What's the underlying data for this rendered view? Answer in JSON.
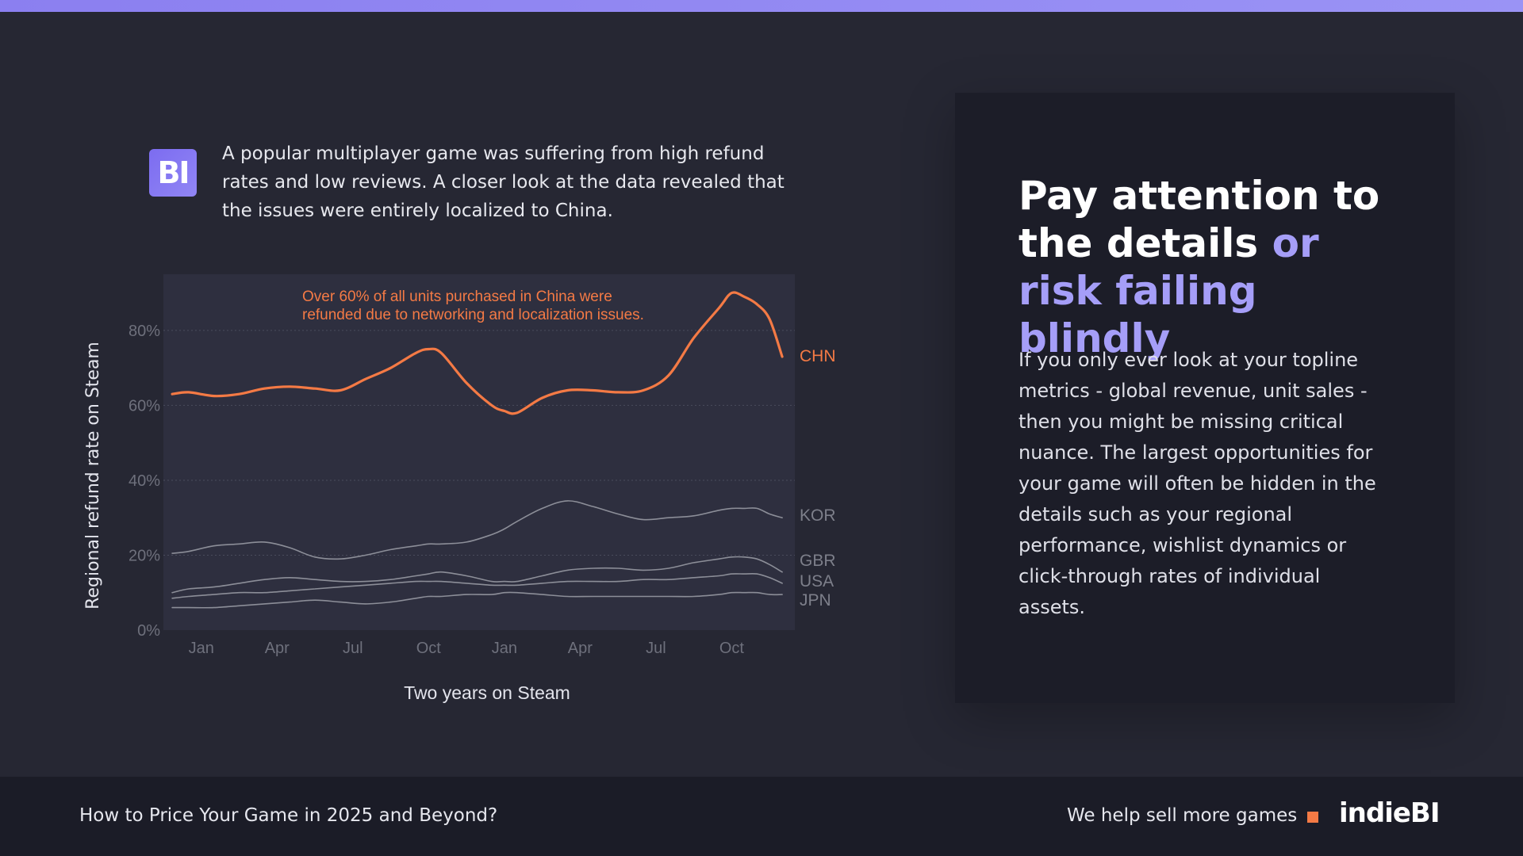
{
  "intro": {
    "logo_text": "BI",
    "text": "A popular multiplayer game was suffering from high refund rates and low reviews. A closer look at the data revealed that the issues were entirely localized to China."
  },
  "chart_data": {
    "type": "line",
    "xlabel": "Two years on Steam",
    "ylabel": "Regional refund rate on Steam",
    "ylim": [
      0,
      95
    ],
    "yticks": [
      0,
      20,
      40,
      60,
      80
    ],
    "ytick_labels": [
      "0%",
      "20%",
      "40%",
      "60%",
      "80%"
    ],
    "x_tick_labels": [
      "Jan",
      "Apr",
      "Jul",
      "Oct",
      "Jan",
      "Apr",
      "Jul",
      "Oct"
    ],
    "x_tick_positions": [
      1.5,
      4.5,
      7.5,
      10.5,
      13.5,
      16.5,
      19.5,
      22.5
    ],
    "xlim": [
      0,
      25
    ],
    "grid": true,
    "legend": "inline-right",
    "annotation": {
      "lines": [
        "Over 60% of all units  purchased in China were",
        "refunded due to networking and localization issues."
      ],
      "color": "#f47a45"
    },
    "x": [
      0.35,
      1,
      2,
      3,
      4,
      5,
      6,
      7,
      8,
      9,
      10,
      10.5,
      11,
      12,
      13,
      13.5,
      14,
      15,
      16,
      17,
      18,
      19,
      20,
      21,
      22,
      22.5,
      23,
      23.5,
      24,
      24.5
    ],
    "series": [
      {
        "name": "CHN",
        "color": "#f47a45",
        "width": 3.2,
        "values": [
          63,
          63.5,
          62.5,
          63,
          64.5,
          65,
          64.5,
          64,
          67,
          70,
          74,
          75,
          74,
          66,
          60,
          58.5,
          58,
          62,
          64,
          64,
          63.5,
          64,
          68,
          78,
          86,
          90,
          89,
          87,
          83,
          73
        ]
      },
      {
        "name": "KOR",
        "color": "#8c8e98",
        "width": 1.6,
        "values": [
          20.5,
          21,
          22.5,
          23,
          23.5,
          22,
          19.5,
          19,
          20,
          21.5,
          22.5,
          23,
          23,
          23.5,
          25.5,
          27,
          29,
          32.5,
          34.5,
          33,
          31,
          29.5,
          30,
          30.5,
          32,
          32.5,
          32.5,
          32.5,
          31,
          30
        ]
      },
      {
        "name": "GBR",
        "color": "#8c8e98",
        "width": 1.6,
        "values": [
          10,
          11,
          11.5,
          12.5,
          13.5,
          14,
          13.5,
          13,
          13,
          13.5,
          14.5,
          15,
          15.5,
          14.5,
          13,
          13,
          13,
          14.5,
          16,
          16.5,
          16.5,
          16,
          16.5,
          18,
          19,
          19.5,
          19.5,
          19,
          17.5,
          15.5
        ]
      },
      {
        "name": "USA",
        "color": "#8c8e98",
        "width": 1.6,
        "values": [
          8.5,
          9,
          9.5,
          10,
          10,
          10.5,
          11,
          11.5,
          12,
          12.5,
          13,
          13,
          13,
          12.5,
          12,
          12,
          12,
          12.5,
          13,
          13,
          13,
          13.5,
          13.5,
          14,
          14.5,
          15,
          15,
          15,
          14,
          12.5
        ]
      },
      {
        "name": "JPN",
        "color": "#8c8e98",
        "width": 1.6,
        "values": [
          6,
          6,
          6,
          6.5,
          7,
          7.5,
          8,
          7.5,
          7,
          7.5,
          8.5,
          9,
          9,
          9.5,
          9.5,
          10,
          10,
          9.5,
          9,
          9,
          9,
          9,
          9,
          9,
          9.5,
          10,
          10,
          10,
          9.5,
          9.5
        ]
      }
    ]
  },
  "panel": {
    "headline_plain": "Pay attention to the details",
    "headline_accent": "or risk failing blindly",
    "body": "If you only ever look at your topline metrics - global revenue, unit sales - then you might be missing critical nuance. The largest opportunities for your game will often be hidden in the details such as your regional performance, wishlist dynamics or click-through rates of individual assets."
  },
  "footer": {
    "left": "How to Price Your Game in 2025 and Beyond?",
    "tagline": "We help sell more games",
    "brand": "indieBI"
  },
  "colors": {
    "background": "#262733",
    "plot_background": "#2e2f3f",
    "panel": "#1c1d28",
    "accent": "#a59ef8",
    "chn": "#f47a45",
    "other_series": "#8c8e98"
  }
}
